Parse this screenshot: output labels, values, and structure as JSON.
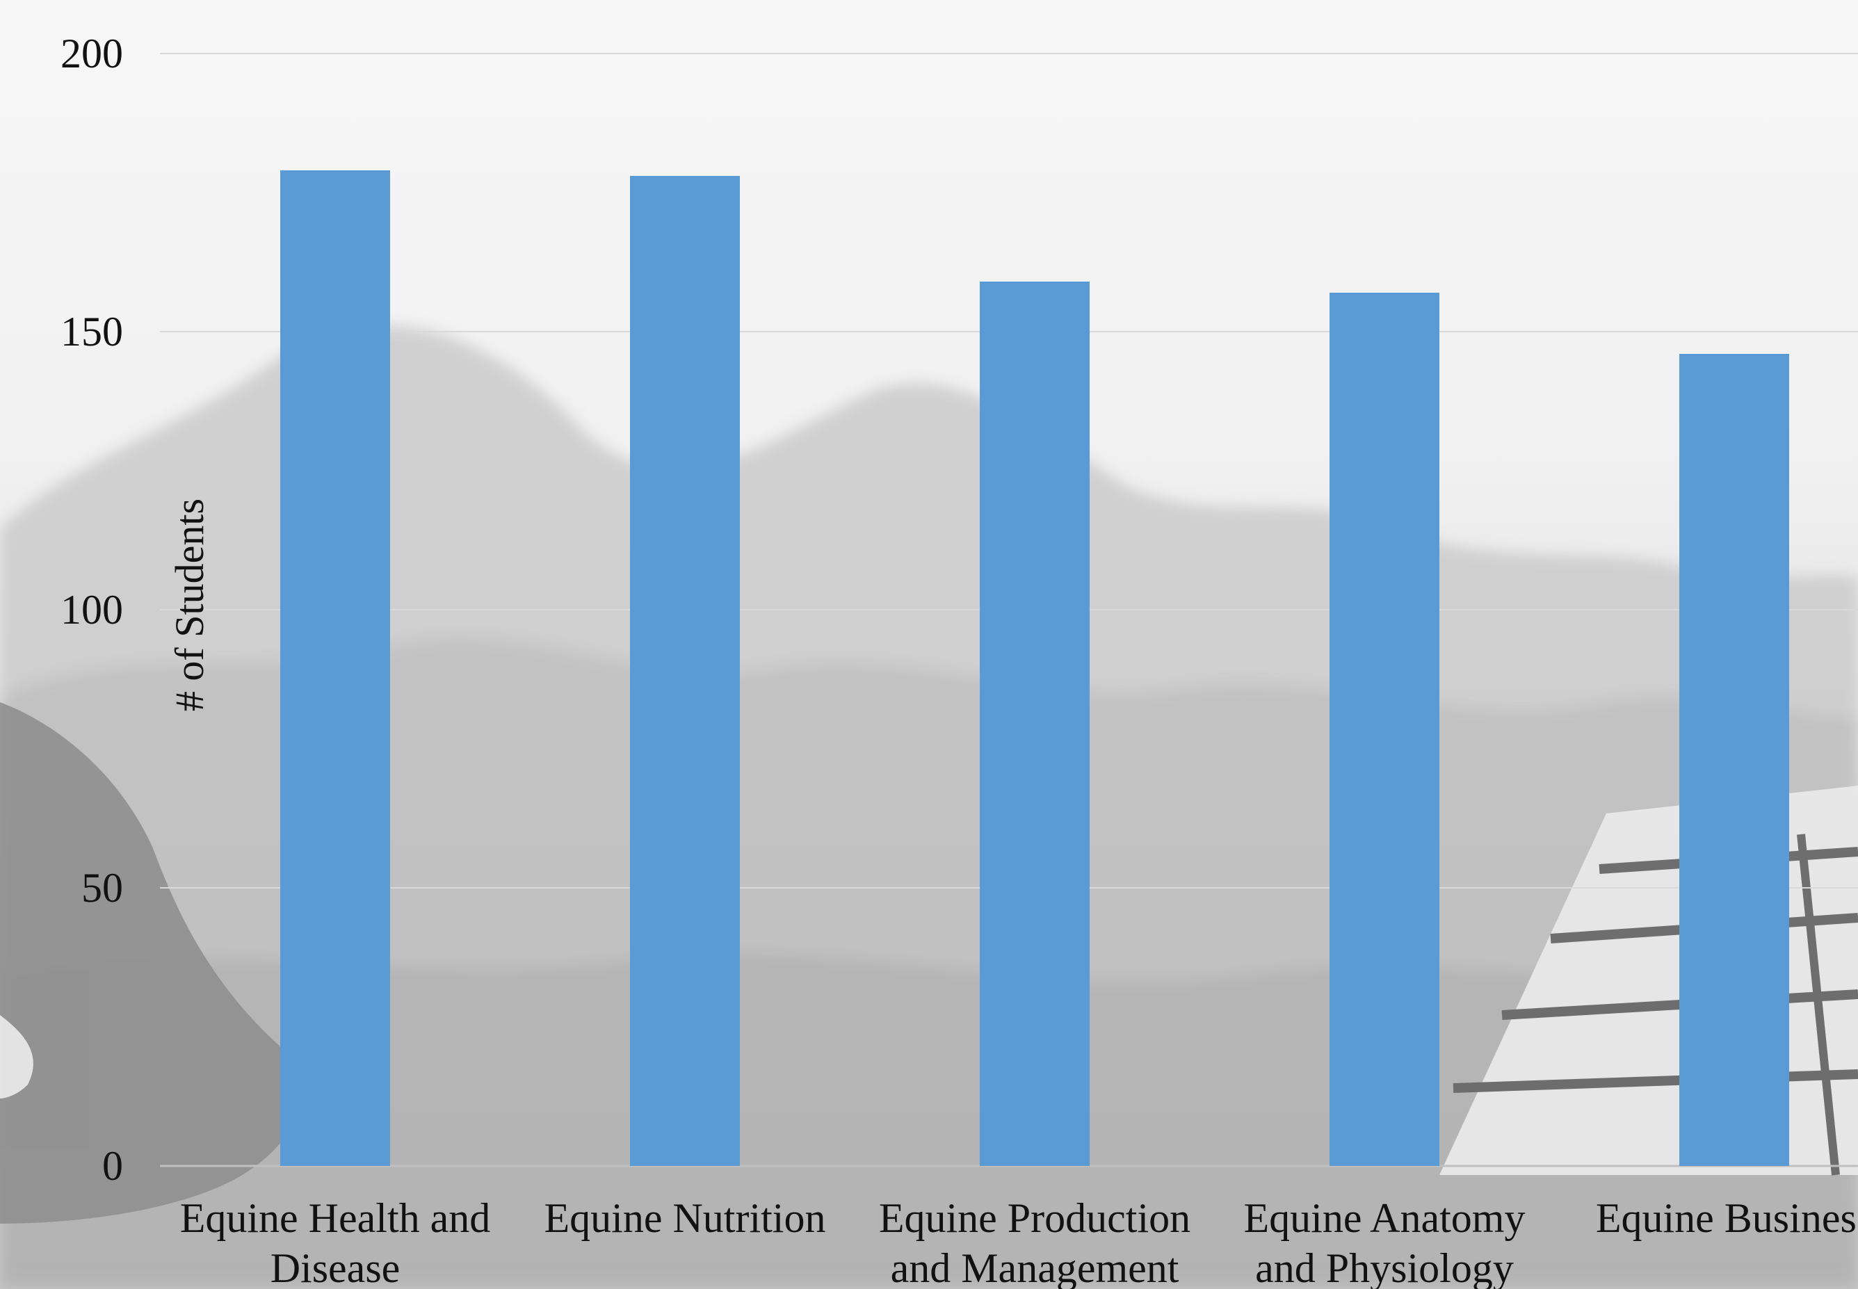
{
  "chart_data": {
    "type": "bar",
    "categories": [
      [
        "Equine Health and",
        "Disease"
      ],
      [
        "Equine Nutrition"
      ],
      [
        "Equine Production",
        "and Management"
      ],
      [
        "Equine Anatomy",
        "and Physiology"
      ],
      [
        "Equine Business"
      ]
    ],
    "values": [
      179,
      178,
      159,
      157,
      146
    ],
    "ylabel": "# of Students",
    "ylim": [
      0,
      200
    ],
    "yticks": [
      0,
      50,
      100,
      150,
      200
    ],
    "grid": true,
    "bar_color": "#5b9bd5",
    "gridline_color": "#d9d9d9"
  }
}
